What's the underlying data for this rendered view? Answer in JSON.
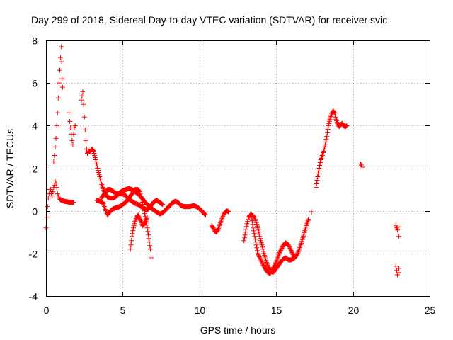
{
  "chart_data": {
    "type": "scatter",
    "title": "Day 299 of 2018, Sidereal Day-to-day VTEC variation (SDTVAR) for receiver svic",
    "xlabel": "GPS time / hours",
    "ylabel": "SDTVAR / TECUs",
    "xlim": [
      0,
      25
    ],
    "ylim": [
      -4,
      8
    ],
    "xticks": [
      "0",
      "5",
      "10",
      "15",
      "20",
      "25"
    ],
    "yticks": [
      "-4",
      "-2",
      "0",
      "2",
      "4",
      "6",
      "8"
    ],
    "grid": true,
    "marker": "+",
    "color": "#ff0000",
    "series": [
      {
        "name": "SDTVAR",
        "segments": [
          [
            [
              0.0,
              -0.8
            ],
            [
              0.05,
              -0.3
            ],
            [
              0.1,
              0.2
            ],
            [
              0.15,
              0.6
            ],
            [
              0.2,
              0.8
            ],
            [
              0.25,
              1.0
            ],
            [
              0.3,
              1.0
            ],
            [
              0.35,
              0.8
            ],
            [
              0.4,
              0.7
            ],
            [
              0.45,
              0.9
            ],
            [
              0.5,
              1.1
            ],
            [
              0.55,
              1.2
            ],
            [
              0.6,
              1.4
            ],
            [
              0.65,
              1.3
            ],
            [
              0.7,
              1.1
            ],
            [
              0.75,
              0.8
            ],
            [
              0.8,
              0.7
            ],
            [
              0.85,
              0.6
            ],
            [
              0.9,
              0.55
            ],
            [
              1.0,
              0.5
            ],
            [
              1.2,
              0.45
            ],
            [
              1.4,
              0.42
            ],
            [
              1.6,
              0.4
            ],
            [
              1.8,
              0.4
            ]
          ],
          [
            [
              0.5,
              2.3
            ],
            [
              0.55,
              2.6
            ],
            [
              0.6,
              3.0
            ],
            [
              0.65,
              3.4
            ],
            [
              0.7,
              4.0
            ],
            [
              0.75,
              4.6
            ],
            [
              0.8,
              5.3
            ],
            [
              0.85,
              6.0
            ],
            [
              0.9,
              6.6
            ],
            [
              0.95,
              7.2
            ],
            [
              1.0,
              7.7
            ],
            [
              1.02,
              7.0
            ],
            [
              1.05,
              6.2
            ],
            [
              1.08,
              5.8
            ]
          ],
          [
            [
              1.5,
              4.6
            ],
            [
              1.55,
              4.2
            ],
            [
              1.6,
              3.9
            ],
            [
              1.65,
              3.6
            ],
            [
              1.7,
              3.3
            ],
            [
              1.75,
              3.1
            ],
            [
              1.8,
              3.6
            ],
            [
              1.85,
              3.9
            ],
            [
              1.9,
              4.0
            ]
          ],
          [
            [
              2.3,
              5.2
            ],
            [
              2.35,
              5.4
            ],
            [
              2.4,
              5.6
            ],
            [
              2.45,
              5.0
            ],
            [
              2.5,
              4.4
            ],
            [
              2.55,
              3.8
            ],
            [
              2.6,
              3.3
            ],
            [
              2.65,
              2.9
            ],
            [
              2.7,
              2.7
            ],
            [
              2.8,
              2.8
            ],
            [
              2.9,
              2.8
            ],
            [
              3.0,
              2.9
            ],
            [
              3.1,
              2.8
            ],
            [
              3.2,
              2.5
            ],
            [
              3.3,
              2.2
            ],
            [
              3.4,
              1.9
            ],
            [
              3.5,
              1.6
            ],
            [
              3.6,
              1.3
            ],
            [
              3.7,
              1.1
            ],
            [
              3.8,
              0.9
            ],
            [
              3.9,
              0.75
            ],
            [
              4.0,
              0.65
            ],
            [
              4.2,
              0.6
            ],
            [
              4.4,
              0.6
            ],
            [
              4.6,
              0.7
            ],
            [
              4.8,
              0.85
            ],
            [
              5.0,
              0.95
            ],
            [
              5.2,
              1.0
            ],
            [
              5.4,
              1.05
            ],
            [
              5.6,
              1.0
            ],
            [
              5.8,
              0.9
            ],
            [
              6.0,
              0.8
            ],
            [
              6.2,
              0.65
            ],
            [
              6.4,
              0.45
            ],
            [
              6.6,
              0.3
            ],
            [
              6.8,
              0.15
            ],
            [
              7.0,
              0.05
            ],
            [
              7.2,
              -0.05
            ],
            [
              7.4,
              -0.15
            ],
            [
              7.6,
              -0.1
            ],
            [
              7.8,
              0.05
            ],
            [
              8.0,
              0.2
            ],
            [
              8.2,
              0.35
            ],
            [
              8.4,
              0.45
            ],
            [
              8.6,
              0.4
            ],
            [
              8.8,
              0.25
            ],
            [
              9.0,
              0.2
            ],
            [
              9.2,
              0.2
            ],
            [
              9.4,
              0.2
            ],
            [
              9.6,
              0.25
            ],
            [
              9.8,
              0.2
            ],
            [
              10.0,
              0.1
            ],
            [
              10.2,
              -0.05
            ],
            [
              10.4,
              -0.2
            ]
          ],
          [
            [
              3.3,
              0.5
            ],
            [
              3.5,
              0.45
            ],
            [
              3.7,
              0.4
            ],
            [
              3.8,
              0.2
            ],
            [
              3.9,
              0.0
            ],
            [
              4.0,
              -0.2
            ],
            [
              4.1,
              -0.1
            ],
            [
              4.2,
              0.0
            ],
            [
              4.4,
              0.1
            ],
            [
              4.6,
              0.15
            ],
            [
              4.8,
              0.2
            ],
            [
              5.0,
              0.3
            ],
            [
              5.2,
              0.4
            ],
            [
              5.4,
              0.6
            ],
            [
              5.6,
              0.8
            ],
            [
              5.8,
              1.0
            ],
            [
              6.0,
              1.0
            ],
            [
              6.1,
              0.9
            ],
            [
              6.2,
              0.6
            ],
            [
              6.3,
              0.3
            ],
            [
              6.4,
              0.0
            ],
            [
              6.5,
              -0.4
            ],
            [
              6.6,
              -0.8
            ],
            [
              6.7,
              -1.3
            ],
            [
              6.8,
              -1.8
            ],
            [
              6.85,
              -2.2
            ]
          ],
          [
            [
              3.6,
              0.6
            ],
            [
              3.8,
              0.8
            ],
            [
              4.0,
              1.0
            ],
            [
              4.2,
              1.0
            ],
            [
              4.4,
              0.9
            ],
            [
              4.6,
              0.8
            ],
            [
              4.8,
              0.8
            ],
            [
              5.0,
              0.8
            ],
            [
              5.2,
              0.7
            ],
            [
              5.4,
              0.55
            ],
            [
              5.6,
              0.45
            ],
            [
              5.8,
              0.35
            ],
            [
              6.0,
              0.3
            ],
            [
              6.2,
              0.2
            ],
            [
              6.4,
              0.1
            ],
            [
              6.6,
              0.05
            ],
            [
              6.8,
              0.2
            ],
            [
              7.0,
              0.4
            ],
            [
              7.2,
              0.5
            ],
            [
              7.4,
              0.4
            ],
            [
              7.6,
              0.3
            ]
          ],
          [
            [
              5.5,
              -1.8
            ],
            [
              5.6,
              -1.2
            ],
            [
              5.7,
              -0.8
            ],
            [
              5.8,
              -0.5
            ],
            [
              5.9,
              -0.3
            ],
            [
              6.0,
              -0.2
            ],
            [
              6.1,
              -0.35
            ],
            [
              6.2,
              -0.5
            ],
            [
              6.3,
              -0.7
            ],
            [
              6.4,
              -0.6
            ],
            [
              6.5,
              -0.5
            ],
            [
              6.6,
              -0.3
            ]
          ],
          [
            [
              10.8,
              -0.7
            ],
            [
              10.9,
              -0.8
            ],
            [
              11.0,
              -0.95
            ],
            [
              11.1,
              -1.0
            ],
            [
              11.2,
              -0.9
            ],
            [
              11.3,
              -0.7
            ],
            [
              11.4,
              -0.5
            ],
            [
              11.5,
              -0.3
            ],
            [
              11.6,
              -0.15
            ],
            [
              11.7,
              -0.05
            ],
            [
              11.8,
              0.0
            ],
            [
              11.9,
              -0.05
            ]
          ],
          [
            [
              12.9,
              -1.4
            ],
            [
              13.0,
              -1.0
            ],
            [
              13.1,
              -0.6
            ],
            [
              13.2,
              -0.3
            ],
            [
              13.3,
              -0.2
            ],
            [
              13.4,
              -0.3
            ],
            [
              13.5,
              -0.8
            ],
            [
              13.6,
              -1.2
            ],
            [
              13.7,
              -1.6
            ],
            [
              13.8,
              -2.0
            ],
            [
              14.0,
              -2.3
            ],
            [
              14.2,
              -2.6
            ],
            [
              14.4,
              -2.85
            ],
            [
              14.6,
              -2.95
            ],
            [
              14.8,
              -2.7
            ],
            [
              15.0,
              -2.4
            ],
            [
              15.2,
              -2.0
            ],
            [
              15.4,
              -1.7
            ],
            [
              15.6,
              -1.5
            ],
            [
              15.8,
              -1.6
            ],
            [
              16.0,
              -1.9
            ],
            [
              16.2,
              -2.2
            ],
            [
              16.4,
              -2.0
            ],
            [
              16.6,
              -1.6
            ],
            [
              16.8,
              -1.1
            ],
            [
              17.0,
              -0.6
            ],
            [
              17.1,
              -0.4
            ]
          ],
          [
            [
              13.4,
              -0.2
            ],
            [
              13.6,
              -0.3
            ],
            [
              13.8,
              -0.8
            ],
            [
              14.0,
              -1.4
            ],
            [
              14.2,
              -2.0
            ],
            [
              14.4,
              -2.5
            ],
            [
              14.6,
              -2.8
            ],
            [
              14.8,
              -2.9
            ],
            [
              15.0,
              -2.7
            ],
            [
              15.2,
              -2.5
            ],
            [
              15.4,
              -2.3
            ],
            [
              15.6,
              -2.2
            ],
            [
              15.8,
              -2.3
            ],
            [
              16.0,
              -2.3
            ],
            [
              16.2,
              -2.2
            ]
          ],
          [
            [
              17.3,
              -0.05
            ]
          ],
          [
            [
              17.6,
              1.1
            ],
            [
              17.7,
              1.6
            ],
            [
              17.8,
              2.0
            ],
            [
              17.9,
              2.4
            ],
            [
              18.0,
              2.6
            ],
            [
              18.1,
              2.8
            ],
            [
              18.2,
              3.1
            ],
            [
              18.3,
              3.5
            ],
            [
              18.4,
              4.0
            ],
            [
              18.5,
              4.3
            ],
            [
              18.6,
              4.5
            ],
            [
              18.7,
              4.7
            ],
            [
              18.8,
              4.6
            ],
            [
              18.9,
              4.3
            ],
            [
              19.0,
              4.1
            ],
            [
              19.1,
              3.95
            ],
            [
              19.2,
              4.05
            ],
            [
              19.3,
              4.1
            ],
            [
              19.4,
              4.0
            ],
            [
              19.5,
              3.95
            ],
            [
              19.6,
              4.0
            ]
          ],
          [
            [
              20.5,
              2.2
            ],
            [
              20.55,
              2.15
            ],
            [
              20.6,
              2.05
            ]
          ],
          [
            [
              22.8,
              -0.7
            ],
            [
              22.85,
              -0.8
            ],
            [
              22.9,
              -0.9
            ],
            [
              22.95,
              -0.75
            ],
            [
              23.0,
              -1.2
            ]
          ],
          [
            [
              22.8,
              -2.6
            ],
            [
              22.85,
              -2.8
            ],
            [
              22.9,
              -3.0
            ],
            [
              22.95,
              -2.9
            ],
            [
              23.0,
              -2.7
            ]
          ]
        ]
      }
    ]
  }
}
